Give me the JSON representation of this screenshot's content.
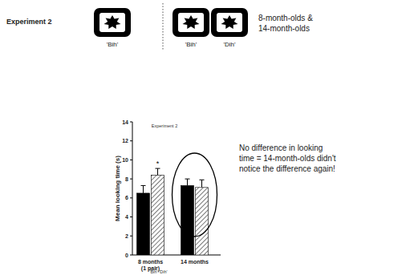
{
  "slide": {
    "heading": "Experiment 2",
    "conditions": [
      "'Bih'",
      "'Bih'",
      "'Dih'"
    ],
    "ages": [
      "8-month-olds &",
      "14-month-olds"
    ],
    "note": [
      "No difference in looking",
      "time = 14-month-olds didn't",
      "notice the difference again!"
    ]
  },
  "chart_data": {
    "type": "bar",
    "title": "Experiment 2",
    "y_label": "Mean looking time (s)",
    "x_label": "'Bih'-'Dih'",
    "categories": [
      "8 months (1 pair)",
      "14 months"
    ],
    "series": [
      {
        "color": "#000000",
        "values": [
          6.5,
          7.3
        ],
        "errors": [
          0.8,
          0.7
        ]
      },
      {
        "color": "#555555",
        "values": [
          8.4,
          7.1
        ],
        "errors": [
          0.7,
          0.8
        ],
        "significance": [
          "*",
          null
        ]
      }
    ],
    "ylim": [
      0,
      14
    ],
    "yticks": [
      0,
      2,
      4,
      6,
      8,
      10,
      12,
      14
    ],
    "grid": false
  }
}
